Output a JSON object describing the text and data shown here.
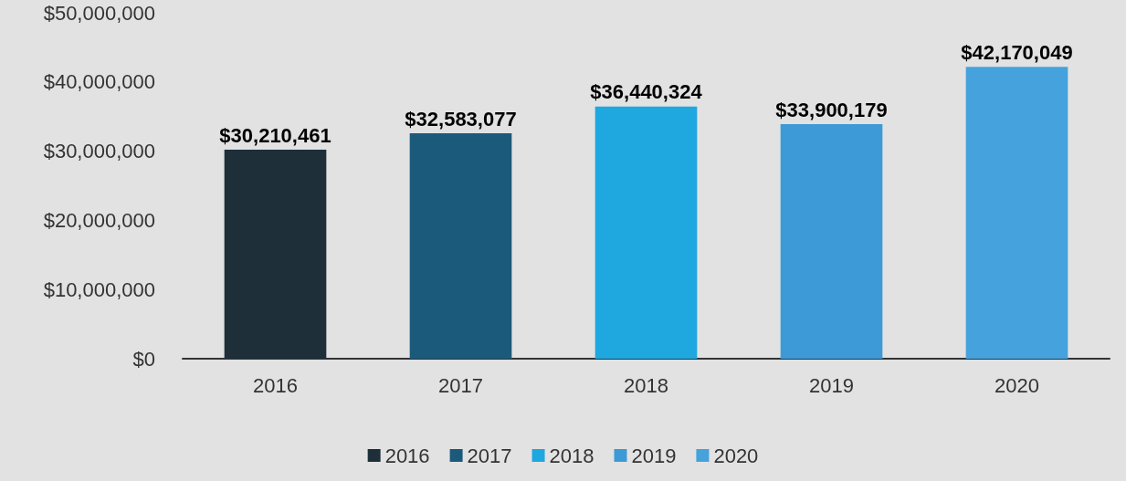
{
  "chart_data": {
    "type": "bar",
    "categories": [
      "2016",
      "2017",
      "2018",
      "2019",
      "2020"
    ],
    "series": [
      {
        "name": "2016",
        "color": "#1f2f3a",
        "values": [
          30210461,
          null,
          null,
          null,
          null
        ],
        "value_labels": [
          "$30,210,461",
          null,
          null,
          null,
          null
        ]
      },
      {
        "name": "2017",
        "color": "#1b5a7a",
        "values": [
          null,
          32583077,
          null,
          null,
          null
        ],
        "value_labels": [
          null,
          "$32,583,077",
          null,
          null,
          null
        ]
      },
      {
        "name": "2018",
        "color": "#1fa7e0",
        "values": [
          null,
          null,
          36440324,
          null,
          null
        ],
        "value_labels": [
          null,
          null,
          "$36,440,324",
          null,
          null
        ]
      },
      {
        "name": "2019",
        "color": "#3d9ad6",
        "values": [
          null,
          null,
          null,
          33900179,
          null
        ],
        "value_labels": [
          null,
          null,
          null,
          "$33,900,179",
          null
        ]
      },
      {
        "name": "2020",
        "color": "#45a2dc",
        "values": [
          null,
          null,
          null,
          null,
          42170049
        ],
        "value_labels": [
          null,
          null,
          null,
          null,
          "$42,170,049"
        ]
      }
    ],
    "ylim": [
      0,
      50000000
    ],
    "yticks": [
      {
        "value": 0,
        "label": "$0"
      },
      {
        "value": 10000000,
        "label": "$10,000,000"
      },
      {
        "value": 20000000,
        "label": "$20,000,000"
      },
      {
        "value": 30000000,
        "label": "$30,000,000"
      },
      {
        "value": 40000000,
        "label": "$40,000,000"
      },
      {
        "value": 50000000,
        "label": "$50,000,000"
      }
    ],
    "grid": false,
    "legend": "bottom"
  }
}
